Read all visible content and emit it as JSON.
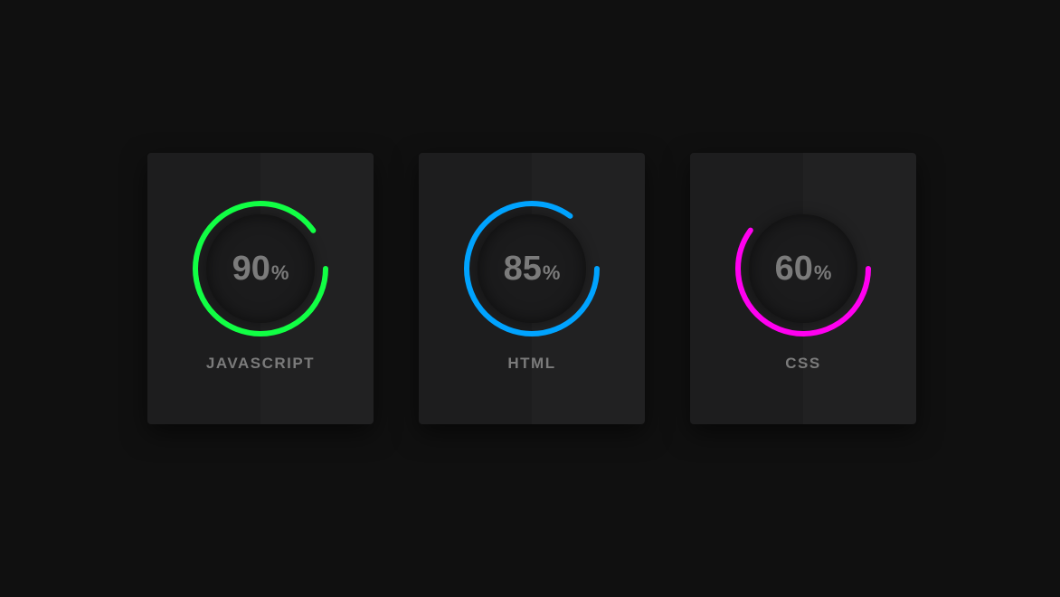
{
  "cards": [
    {
      "label": "JAVASCRIPT",
      "percent": "90",
      "unit": "%",
      "progress": 0.9,
      "color": "#11ff44"
    },
    {
      "label": "HTML",
      "percent": "85",
      "unit": "%",
      "progress": 0.85,
      "color": "#00a3ff"
    },
    {
      "label": "CSS",
      "percent": "60",
      "unit": "%",
      "progress": 0.6,
      "color": "#ff00f0"
    }
  ]
}
